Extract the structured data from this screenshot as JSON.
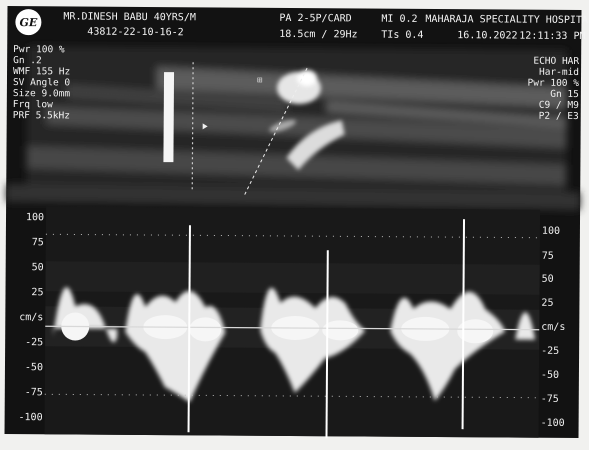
{
  "header": {
    "logo": "GE",
    "patient": "MR.DINESH BABU 40YRS/M",
    "id": "43812-22-10-16-2",
    "probe": "PA 2-5P/CARD",
    "depth": "18.5cm / 29Hz",
    "mi": "MI 0.2",
    "tis": "TIs 0.4",
    "hospital": "MAHARAJA SPECIALITY HOSPITA",
    "date": "16.10.2022",
    "time": "12:11:33 PM"
  },
  "left_params": [
    "Pwr 100 %",
    "Gn .2",
    "WMF 155 Hz",
    "SV Angle  0",
    "Size  9.0mm",
    "Frq low",
    "PRF  5.5kHz"
  ],
  "right_params": [
    "ECHO HAR",
    "Har-mid",
    "Pwr 100 %",
    "Gn 15",
    "C9 / M9",
    "P2 / E3"
  ],
  "scale_unit": "cm/s",
  "scale_left": [
    "100",
    "75",
    "50",
    "25",
    "cm/s",
    "-25",
    "-50",
    "-75",
    "-100"
  ],
  "scale_right": [
    "100",
    "75",
    "50",
    "25",
    "cm/s",
    "-25",
    "-50",
    "-75",
    "-100"
  ],
  "colors": {
    "background": "#121212",
    "text": "#f2f2f2",
    "paper": "#f1f1ef"
  }
}
